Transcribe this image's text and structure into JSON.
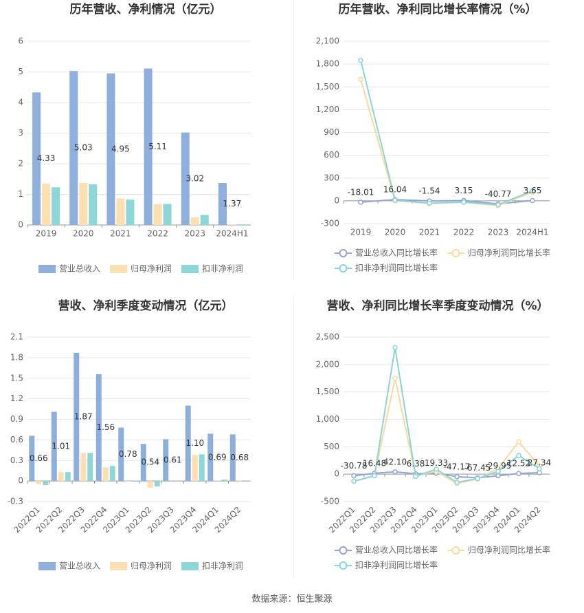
{
  "chart_data": [
    {
      "type": "bar",
      "title": "历年营收、净利情况（亿元）",
      "categories": [
        "2019",
        "2020",
        "2021",
        "2022",
        "2023",
        "2024H1"
      ],
      "series": [
        {
          "name": "营业总收入",
          "color": "#8eaedb",
          "show_labels": true,
          "values": [
            4.33,
            5.03,
            4.95,
            5.11,
            3.02,
            1.37
          ]
        },
        {
          "name": "归母净利润",
          "color": "#fddfb0",
          "values": [
            1.35,
            1.37,
            0.86,
            0.68,
            0.25,
            0.02
          ]
        },
        {
          "name": "扣非净利润",
          "color": "#8dd7d9",
          "values": [
            1.23,
            1.33,
            0.83,
            0.69,
            0.33,
            0.02
          ]
        }
      ],
      "ylim": [
        0,
        6
      ],
      "yticks": [
        0,
        1,
        2,
        3,
        4,
        5,
        6
      ],
      "grid": true
    },
    {
      "type": "line",
      "title": "历年营收、净利同比增长率情况（%）",
      "categories": [
        "2019",
        "2020",
        "2021",
        "2022",
        "2023",
        "2024H1"
      ],
      "series": [
        {
          "name": "营业总收入同比增长率",
          "color": "#8ea5d6",
          "show_labels": true,
          "values": [
            -18.01,
            16.04,
            -1.54,
            3.15,
            -40.77,
            3.65
          ]
        },
        {
          "name": "归母净利润同比增长率",
          "color": "#fbd89e",
          "values": [
            1600,
            2,
            -35,
            -20,
            -63,
            115
          ]
        },
        {
          "name": "扣非净利润同比增长率",
          "color": "#88d4d8",
          "values": [
            1850,
            8,
            -30,
            -17,
            -52,
            130
          ]
        }
      ],
      "ylim": [
        -300,
        2100
      ],
      "yticks": [
        -300,
        0,
        300,
        600,
        900,
        {
          "value": 1200,
          "label": "1,200"
        },
        {
          "value": 1500,
          "label": "1,500"
        },
        {
          "value": 1800,
          "label": "1,800"
        },
        {
          "value": 2100,
          "label": "2,100"
        }
      ],
      "grid": true
    },
    {
      "type": "bar",
      "title": "营收、净利季度变动情况（亿元）",
      "categories": [
        "2022Q1",
        "2022Q2",
        "2022Q3",
        "2022Q4",
        "2023Q1",
        "2023Q2",
        "2023Q3",
        "2023Q4",
        "2024Q1",
        "2024Q2"
      ],
      "series": [
        {
          "name": "营业总收入",
          "color": "#8eaedb",
          "show_labels": true,
          "values": [
            0.66,
            1.01,
            1.87,
            1.56,
            0.78,
            0.54,
            0.61,
            1.1,
            0.69,
            0.68
          ],
          "value_labels": [
            "0.66",
            "1.01",
            "1.87",
            "1.56",
            "0.78",
            "0.54",
            "0.61",
            "1.10",
            "0.69",
            "0.68"
          ]
        },
        {
          "name": "归母净利润",
          "color": "#fddfb0",
          "values": [
            -0.05,
            0.13,
            0.41,
            0.2,
            -0.01,
            -0.1,
            0.0,
            0.38,
            0.01,
            0.01
          ]
        },
        {
          "name": "扣非净利润",
          "color": "#8dd7d9",
          "values": [
            -0.06,
            0.13,
            0.41,
            0.22,
            -0.01,
            -0.08,
            0.0,
            0.39,
            0.02,
            0.0
          ]
        }
      ],
      "ylim": [
        -0.3,
        2.1
      ],
      "yticks": [
        -0.3,
        0,
        0.3,
        0.6,
        0.9,
        1.2,
        1.5,
        1.8,
        2.1
      ],
      "grid": true,
      "rotate_x_labels": true
    },
    {
      "type": "line",
      "title": "营收、净利同比增长率季度变动情况（%）",
      "categories": [
        "2022Q1",
        "2022Q2",
        "2022Q3",
        "2022Q4",
        "2023Q1",
        "2023Q2",
        "2023Q3",
        "2023Q4",
        "2024Q1",
        "2024Q2"
      ],
      "series": [
        {
          "name": "营业总收入同比增长率",
          "color": "#8ea5d6",
          "show_labels": true,
          "values": [
            -30.78,
            16.48,
            42.1,
            6.38,
            19.33,
            -47.17,
            -67.45,
            -29.95,
            12.52,
            27.34
          ],
          "value_labels": [
            "-30.78",
            "16.48",
            "42.10",
            "6.38",
            "19.33",
            "-47.17",
            "-67.45",
            "-29.95",
            "12.52",
            "27.34"
          ]
        },
        {
          "name": "归母净利润同比增长率",
          "color": "#fbd89e",
          "values": [
            -130,
            -30,
            1750,
            -30,
            50,
            -170,
            -90,
            100,
            590,
            150
          ]
        },
        {
          "name": "扣非净利润同比增长率",
          "color": "#88d4d8",
          "values": [
            -130,
            -30,
            2310,
            -40,
            90,
            -150,
            -80,
            50,
            340,
            100
          ]
        }
      ],
      "ylim": [
        -500,
        2500
      ],
      "yticks": [
        -500,
        0,
        500,
        {
          "value": 1000,
          "label": "1,000"
        },
        {
          "value": 1500,
          "label": "1,500"
        },
        {
          "value": 2000,
          "label": "2,000"
        },
        {
          "value": 2500,
          "label": "2,500"
        }
      ],
      "grid": true,
      "rotate_x_labels": true
    }
  ],
  "source": "数据来源：恒生聚源"
}
